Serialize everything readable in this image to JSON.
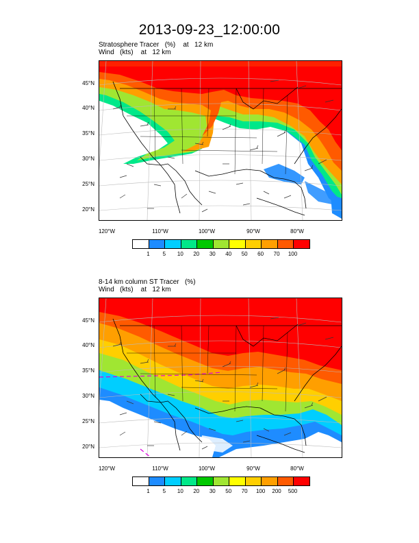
{
  "title": "2013-09-23_12:00:00",
  "panels": [
    {
      "subtitle_line1": "Stratosphere Tracer   (%)    at   12 km",
      "subtitle_line2": "Wind   (kts)    at   12 km",
      "lat_labels": [
        "45°N",
        "40°N",
        "35°N",
        "30°N",
        "25°N",
        "20°N"
      ],
      "lon_labels": [
        "120°W",
        "110°W",
        "100°W",
        "90°W",
        "80°W"
      ],
      "colorbar_labels": [
        "1",
        "5",
        "10",
        "20",
        "30",
        "40",
        "50",
        "60",
        "70",
        "100"
      ],
      "colorbar_colors": [
        "#ffffff",
        "#1e8cff",
        "#00ceff",
        "#00e889",
        "#00c800",
        "#a0e632",
        "#ffff00",
        "#ffcf00",
        "#ff9f00",
        "#ff5a00",
        "#ff0000"
      ]
    },
    {
      "subtitle_line1": "8-14 km column ST Tracer   (%)",
      "subtitle_line2": "Wind   (kts)    at   12 km",
      "lat_labels": [
        "45°N",
        "40°N",
        "35°N",
        "30°N",
        "25°N",
        "20°N"
      ],
      "lon_labels": [
        "120°W",
        "110°W",
        "100°W",
        "90°W",
        "80°W"
      ],
      "colorbar_labels": [
        "1",
        "5",
        "10",
        "20",
        "30",
        "50",
        "70",
        "100",
        "200",
        "500"
      ],
      "colorbar_colors": [
        "#ffffff",
        "#1e8cff",
        "#00ceff",
        "#00e889",
        "#00c800",
        "#a0e632",
        "#ffff00",
        "#ffcf00",
        "#ff9f00",
        "#ff5a00",
        "#ff0000"
      ]
    }
  ]
}
